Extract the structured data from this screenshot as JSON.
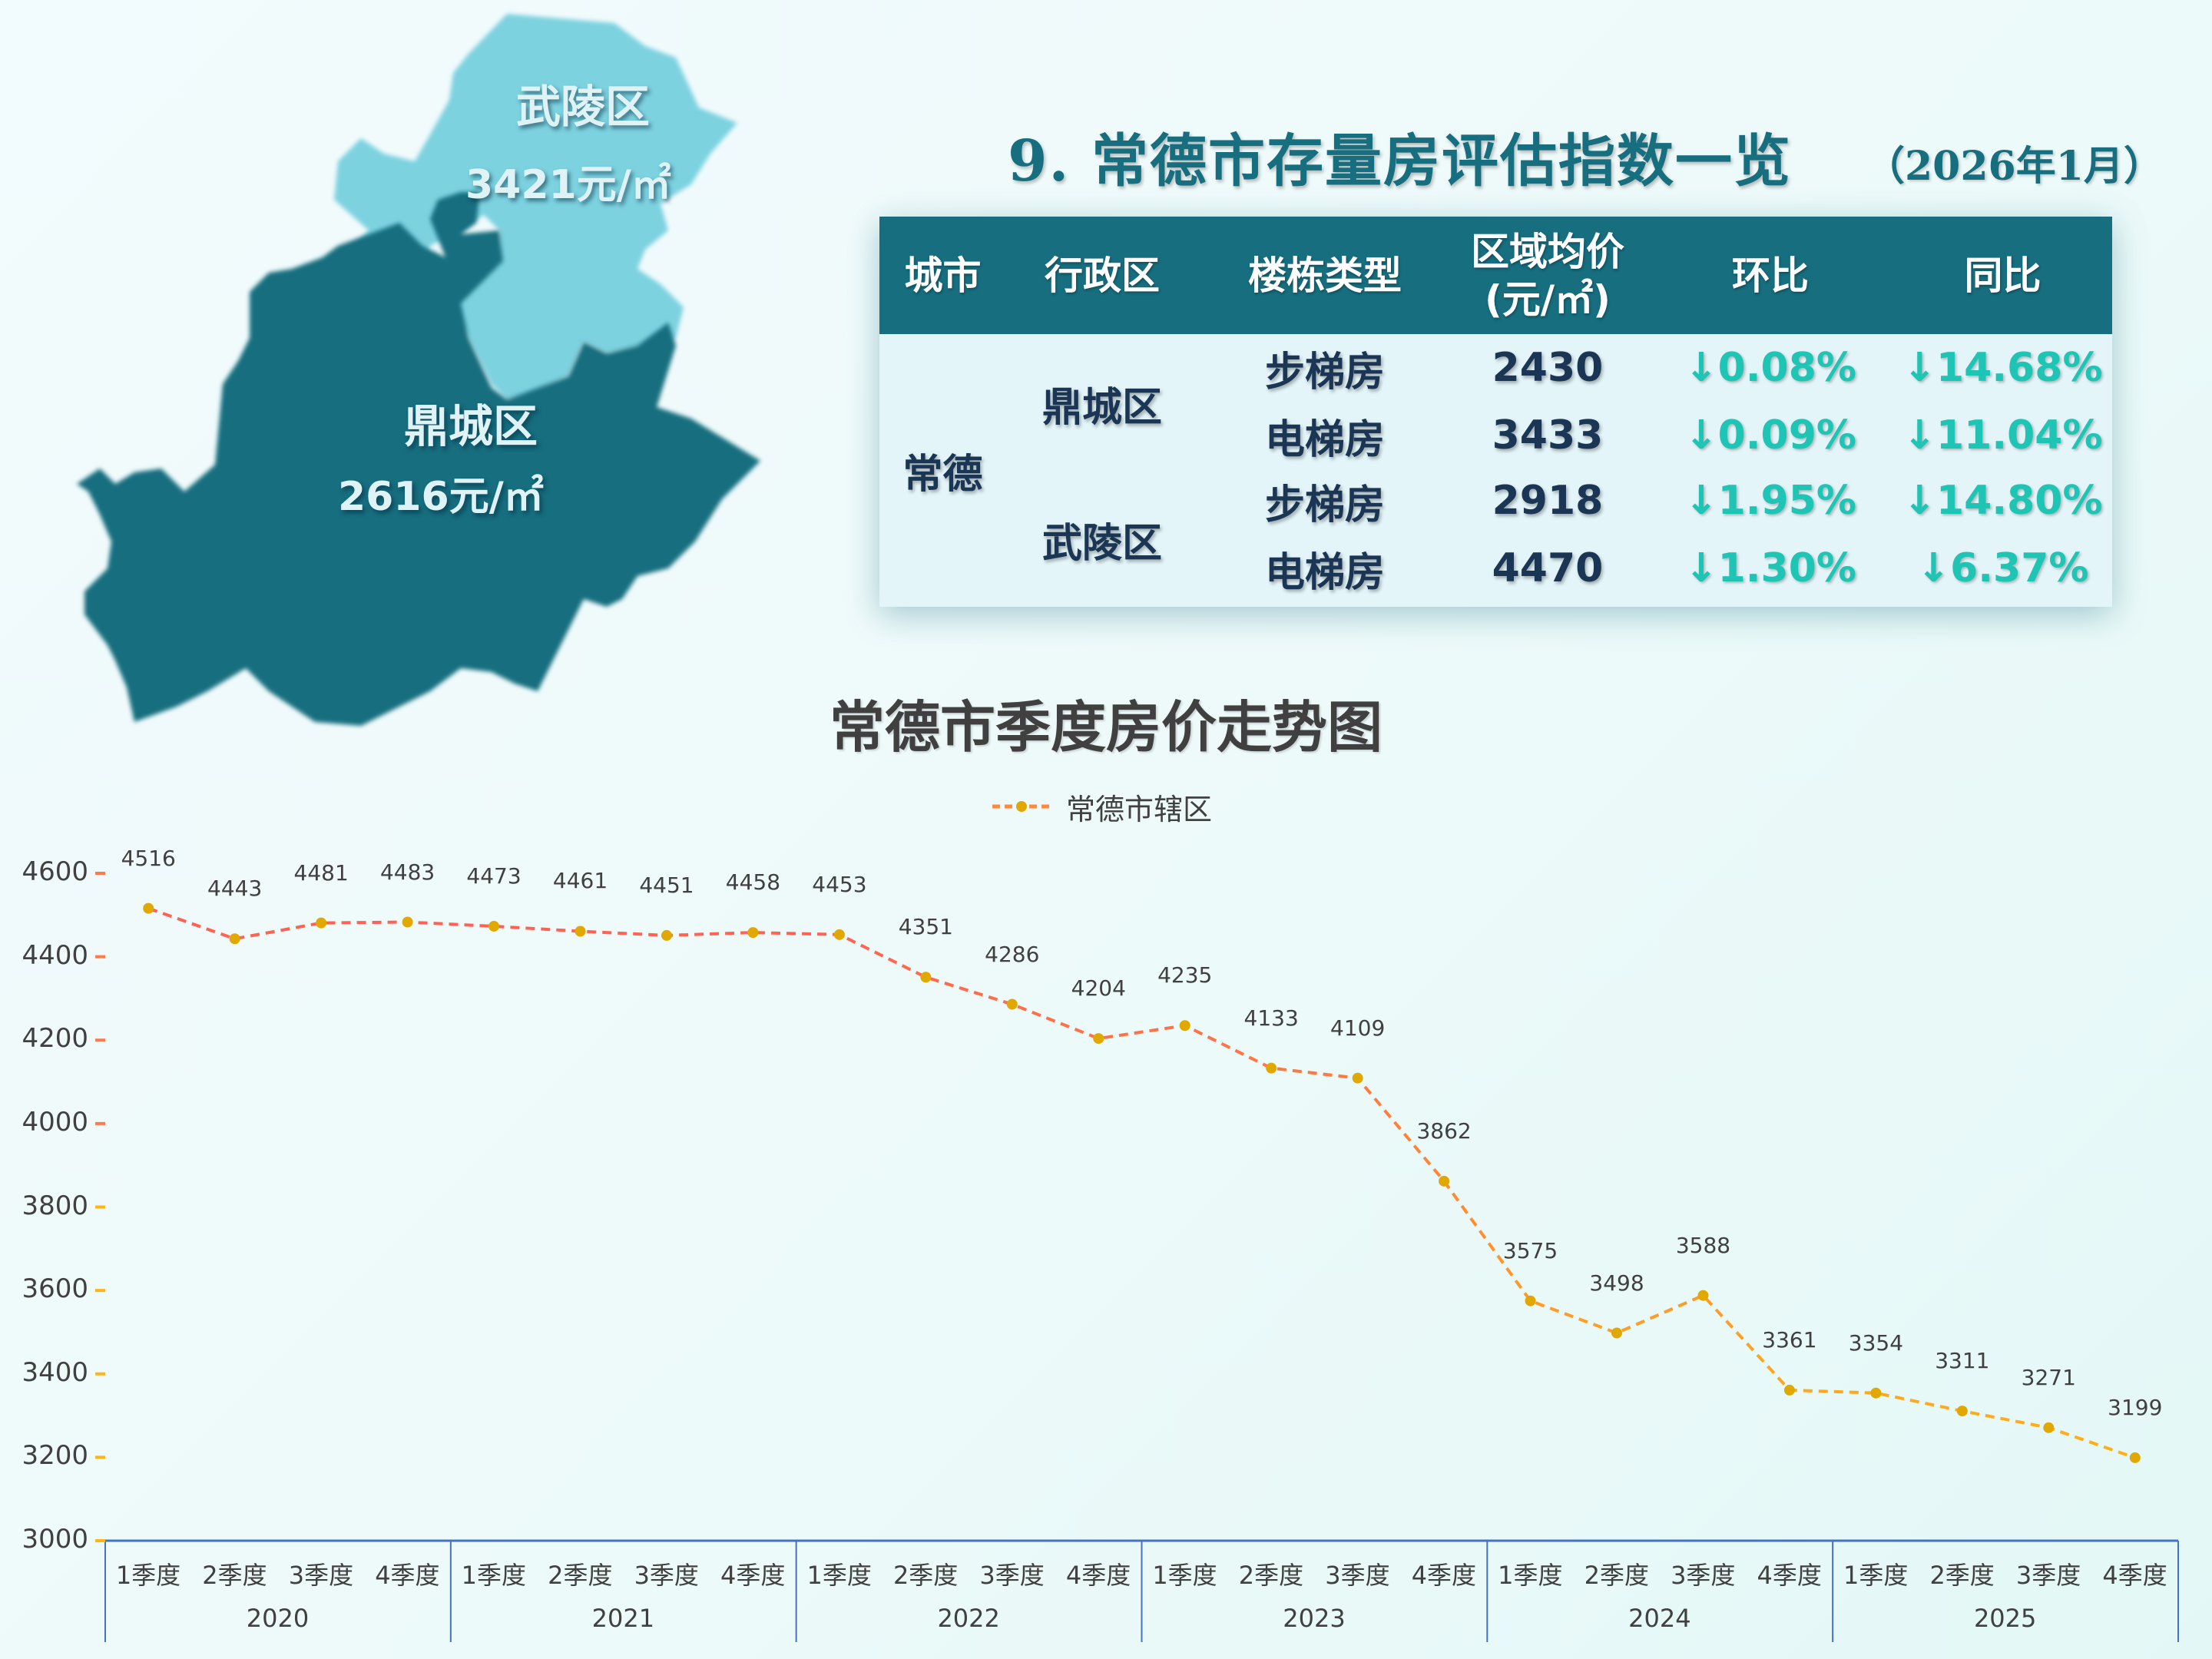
{
  "map": {
    "districts": [
      {
        "name": "武陵区",
        "price": "3421元/㎡",
        "color": "#7dd2e0"
      },
      {
        "name": "鼎城区",
        "price": "2616元/㎡",
        "color": "#176e7f"
      }
    ]
  },
  "header": {
    "title": "9. 常德市存量房评估指数一览",
    "date": "（2026年1月）"
  },
  "table": {
    "columns": [
      "城市",
      "行政区",
      "楼栋类型",
      "区域均价",
      "(元/㎡)",
      "环比",
      "同比"
    ],
    "city": "常德",
    "districts": [
      "鼎城区",
      "武陵区"
    ],
    "rows": [
      {
        "type": "步梯房",
        "price": "2430",
        "mom": "↓0.08%",
        "yoy": "↓14.68%"
      },
      {
        "type": "电梯房",
        "price": "3433",
        "mom": "↓0.09%",
        "yoy": "↓11.04%"
      },
      {
        "type": "步梯房",
        "price": "2918",
        "mom": "↓1.95%",
        "yoy": "↓14.80%"
      },
      {
        "type": "电梯房",
        "price": "4470",
        "mom": "↓1.30%",
        "yoy": "↓6.37%"
      }
    ],
    "header_color": "#176e7f",
    "pct_color": "#1ec4b4"
  },
  "chart_data": {
    "type": "line",
    "title": "常德市季度房价走势图",
    "xlabel": "",
    "ylabel": "",
    "ylim": [
      3000,
      4600
    ],
    "yticks": [
      "4600",
      "4400",
      "4200",
      "4000",
      "3800",
      "3600",
      "3400",
      "3200",
      "3000"
    ],
    "grid": false,
    "legend_position": "top",
    "years": [
      "2020",
      "2021",
      "2022",
      "2023",
      "2024",
      "2025"
    ],
    "quarters": [
      "1季度",
      "2季度",
      "3季度",
      "4季度"
    ],
    "categories": [
      "2020 1季度",
      "2020 2季度",
      "2020 3季度",
      "2020 4季度",
      "2021 1季度",
      "2021 2季度",
      "2021 3季度",
      "2021 4季度",
      "2022 1季度",
      "2022 2季度",
      "2022 3季度",
      "2022 4季度",
      "2023 1季度",
      "2023 2季度",
      "2023 3季度",
      "2023 4季度",
      "2024 1季度",
      "2024 2季度",
      "2024 3季度",
      "2024 4季度",
      "2025 1季度",
      "2025 2季度",
      "2025 3季度",
      "2025 4季度"
    ],
    "series": [
      {
        "name": "常德市辖区",
        "values": [
          4516,
          4443,
          4481,
          4483,
          4473,
          4461,
          4451,
          4458,
          4453,
          4351,
          4286,
          4204,
          4235,
          4133,
          4109,
          3862,
          3575,
          3498,
          3588,
          3361,
          3354,
          3311,
          3271,
          3199
        ]
      }
    ],
    "colors": {
      "line_top": "#ff5a5a",
      "line_bottom": "#ffbe0b",
      "marker": "#e0a800",
      "xaxis": "#4472c4"
    }
  }
}
